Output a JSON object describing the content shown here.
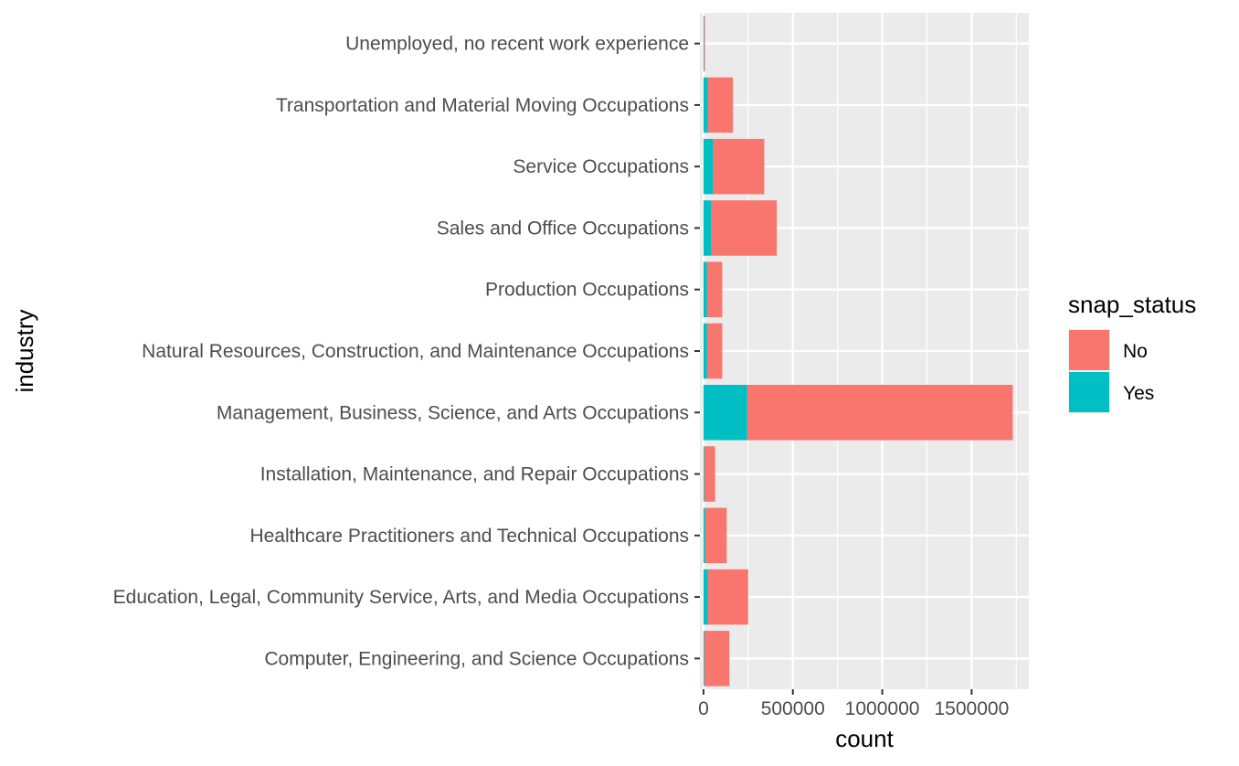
{
  "chart_data": {
    "type": "bar",
    "orientation": "horizontal",
    "stacked": true,
    "xlabel": "count",
    "ylabel": "industry",
    "xlim": [
      -20000,
      1820000
    ],
    "x_ticks": [
      0,
      500000,
      1000000,
      1500000
    ],
    "x_tick_labels": [
      "0",
      "500000",
      "1000000",
      "1500000"
    ],
    "grid": true,
    "legend": {
      "title": "snap_status",
      "placement": "right"
    },
    "categories": [
      "Unemployed, no recent work experience",
      "Transportation and Material Moving Occupations",
      "Service Occupations",
      "Sales and Office Occupations",
      "Production Occupations",
      "Natural Resources, Construction, and Maintenance Occupations",
      "Management, Business, Science, and Arts Occupations",
      "Installation, Maintenance, and Repair Occupations",
      "Healthcare Practitioners and Technical Occupations",
      "Education, Legal, Community Service, Arts, and Media Occupations",
      "Computer, Engineering, and Science Occupations"
    ],
    "series": [
      {
        "name": "Yes",
        "color": "#00BFC4",
        "values": [
          3000,
          25000,
          55000,
          45000,
          20000,
          20000,
          245000,
          5000,
          10000,
          25000,
          5000
        ]
      },
      {
        "name": "No",
        "color": "#F8766D",
        "values": [
          5000,
          140000,
          285000,
          365000,
          85000,
          85000,
          1485000,
          60000,
          120000,
          225000,
          140000
        ]
      }
    ]
  }
}
